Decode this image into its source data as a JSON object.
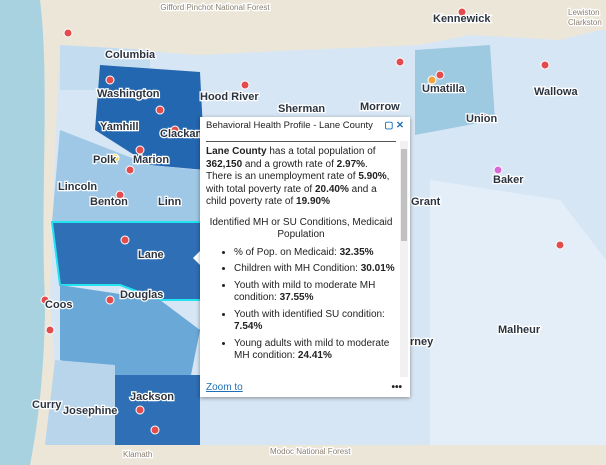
{
  "map": {
    "labels": [
      "Gifford Pinchot National Forest",
      "Kennewick",
      "Lewiston",
      "Clarkston",
      "Columbia",
      "Washington",
      "Hood River",
      "Sherman",
      "Morrow",
      "Umatilla",
      "Wallowa",
      "Union",
      "Yamhill",
      "Clackamas",
      "Polk",
      "Marion",
      "Lincoln",
      "Benton",
      "Linn",
      "Lane",
      "Baker",
      "Grant",
      "Coos",
      "Douglas",
      "Malheur",
      "Curry",
      "Josephine",
      "Jackson",
      "Klamath",
      "Modoc National Forest",
      "rney"
    ]
  },
  "popup": {
    "title": "Behavioral Health Profile - Lane County",
    "summary": [
      "Lane County",
      " has a total population of ",
      "362,150",
      " and a growth rate of ",
      "2.97%",
      ". There is an unemployment rate of ",
      "5.90%",
      ", with total poverty rate of ",
      "20.40%",
      " and a child poverty rate of ",
      "19.90%"
    ],
    "section_title": "Identified MH or SU Conditions, Medicaid Population",
    "items": [
      {
        "label": "% of Pop. on Medicaid:",
        "value": "32.35%"
      },
      {
        "label": "Children with MH Condition:",
        "value": "30.01%"
      },
      {
        "label": "Youth with mild to moderate MH condition:",
        "value": "37.55%"
      },
      {
        "label": "Youth with identified SU condition:",
        "value": "7.54%"
      },
      {
        "label": "Young adults with mild to moderate MH condition:",
        "value": "24.41%"
      }
    ],
    "zoom_to": "Zoom to"
  }
}
